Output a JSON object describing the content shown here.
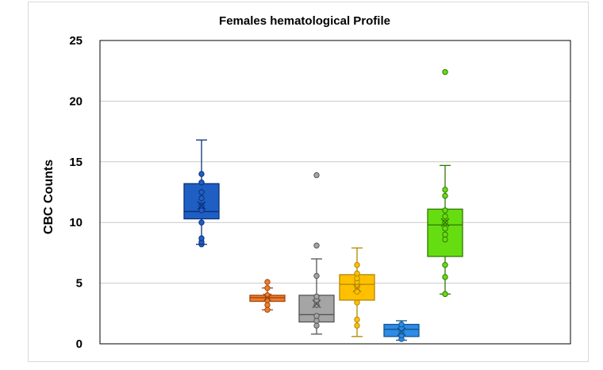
{
  "chart_data": {
    "type": "box",
    "title": "Females hematological Profile",
    "ylabel": "CBC Counts",
    "xlabel": "",
    "ylim": [
      0,
      25
    ],
    "yticks": [
      0,
      5,
      10,
      15,
      20,
      25
    ],
    "grid": true,
    "legend": "none",
    "boxes": [
      {
        "color": "#1f5fc4",
        "edge": "#0b2f7a",
        "whisker_low": 8.2,
        "q1": 10.3,
        "median": 10.9,
        "q3": 13.2,
        "whisker_high": 16.8,
        "mean": 11.4,
        "points": [
          8.2,
          8.4,
          8.7,
          10.0,
          11.0,
          11.4,
          12.0,
          12.5,
          13.3,
          14.0
        ]
      },
      {
        "color": "#ed7d31",
        "edge": "#a3460a",
        "whisker_low": 2.8,
        "q1": 3.5,
        "median": 3.8,
        "q3": 4.0,
        "whisker_high": 4.6,
        "mean": 3.8,
        "points": [
          2.8,
          3.2,
          3.6,
          4.0,
          4.6,
          5.1
        ]
      },
      {
        "color": "#a5a5a5",
        "edge": "#555555",
        "whisker_low": 0.8,
        "q1": 1.8,
        "median": 2.4,
        "q3": 4.0,
        "whisker_high": 7.0,
        "mean": 3.3,
        "points": [
          1.5,
          1.9,
          2.3,
          3.2,
          3.6,
          3.9,
          5.6,
          8.1,
          13.9
        ]
      },
      {
        "color": "#ffc000",
        "edge": "#b38600",
        "whisker_low": 0.6,
        "q1": 3.6,
        "median": 4.9,
        "q3": 5.7,
        "whisker_high": 7.9,
        "mean": 4.6,
        "points": [
          1.5,
          2.0,
          3.4,
          4.3,
          4.7,
          5.1,
          5.4,
          5.8,
          6.5
        ]
      },
      {
        "color": "#2e8be6",
        "edge": "#11558f",
        "whisker_low": 0.3,
        "q1": 0.6,
        "median": 1.2,
        "q3": 1.6,
        "whisker_high": 1.9,
        "mean": 1.0,
        "points": [
          0.4,
          0.7,
          1.0,
          1.3,
          1.6
        ]
      },
      {
        "color": "#66dd11",
        "edge": "#2f7a00",
        "whisker_low": 4.1,
        "q1": 7.2,
        "median": 9.8,
        "q3": 11.1,
        "whisker_high": 14.7,
        "mean": 10.0,
        "points": [
          4.1,
          5.5,
          6.5,
          8.6,
          9.0,
          9.5,
          10.0,
          10.5,
          11.0,
          12.2,
          12.7,
          22.4
        ]
      }
    ]
  }
}
